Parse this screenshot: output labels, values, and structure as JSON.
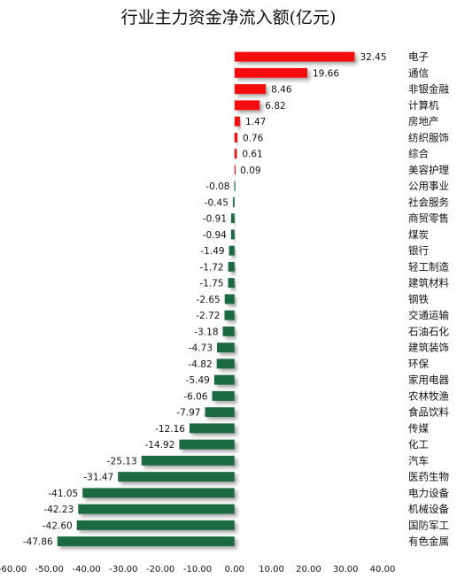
{
  "chart_data": {
    "type": "bar",
    "orientation": "horizontal",
    "title": "行业主力资金净流入额(亿元)",
    "categories": [
      "电子",
      "通信",
      "非银金融",
      "计算机",
      "房地产",
      "纺织服饰",
      "综合",
      "美容护理",
      "公用事业",
      "社会服务",
      "商贸零售",
      "煤炭",
      "银行",
      "轻工制造",
      "建筑材料",
      "钢铁",
      "交通运输",
      "石油石化",
      "建筑装饰",
      "环保",
      "家用电器",
      "农林牧渔",
      "食品饮料",
      "传媒",
      "化工",
      "汽车",
      "医药生物",
      "电力设备",
      "机械设备",
      "国防军工",
      "有色金属"
    ],
    "values": [
      32.45,
      19.66,
      8.46,
      6.82,
      1.47,
      0.76,
      0.61,
      0.09,
      -0.08,
      -0.45,
      -0.91,
      -0.94,
      -1.49,
      -1.72,
      -1.75,
      -2.65,
      -2.72,
      -3.18,
      -4.73,
      -4.82,
      -5.49,
      -6.06,
      -7.97,
      -12.16,
      -14.92,
      -25.13,
      -31.47,
      -41.05,
      -42.23,
      -42.6,
      -47.86
    ],
    "value_labels": [
      "32.45",
      "19.66",
      "8.46",
      "6.82",
      "1.47",
      "0.76",
      "0.61",
      "0.09",
      "-0.08",
      "-0.45",
      "-0.91",
      "-0.94",
      "-1.49",
      "-1.72",
      "-1.75",
      "-2.65",
      "-2.72",
      "-3.18",
      "-4.73",
      "-4.82",
      "-5.49",
      "-6.06",
      "-7.97",
      "-12.16",
      "-14.92",
      "-25.13",
      "-31.47",
      "-41.05",
      "-42.23",
      "-42.60",
      "-47.86"
    ],
    "xlim": [
      -60,
      40
    ],
    "xticks": [
      -60,
      -50,
      -40,
      -30,
      -20,
      -10,
      0,
      10,
      20,
      30,
      40
    ],
    "xtick_labels": [
      "-60.00",
      "-50.00",
      "-40.00",
      "-30.00",
      "-20.00",
      "-10.00",
      "0.00",
      "10.00",
      "20.00",
      "30.00",
      "40.00"
    ],
    "grid": false,
    "legend": "none",
    "colors": {
      "positive": "#f50d0d",
      "negative": "#1f6b43",
      "shadow": "#9a9a9a"
    }
  }
}
